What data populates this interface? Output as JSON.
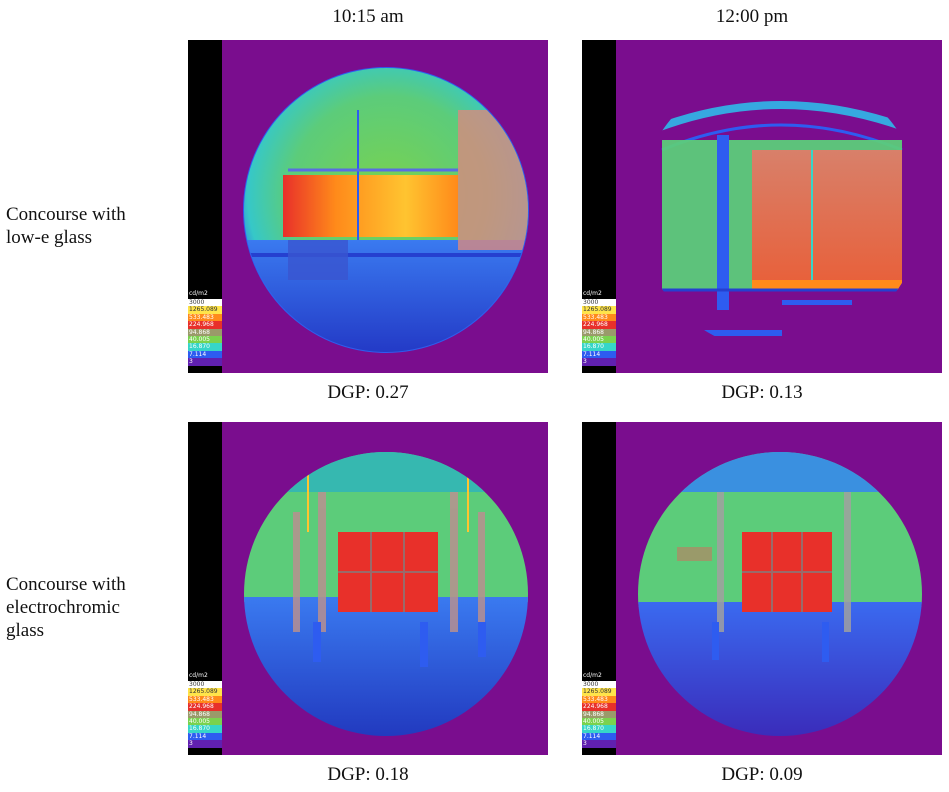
{
  "columns": [
    "10:15 am",
    "12:00 pm"
  ],
  "rows": [
    {
      "label_lines": [
        "Concourse with",
        "low-e glass"
      ]
    },
    {
      "label_lines": [
        "Concourse with",
        "electrochromic",
        "glass"
      ]
    }
  ],
  "legend": {
    "unit": "cd/m2",
    "values": [
      "3000",
      "1265.089",
      "533.483",
      "224.968",
      "94.868",
      "40.005",
      "16.870",
      "7.114",
      "3"
    ],
    "colors": [
      "#ffffff",
      "#ffe44a",
      "#ff8a1a",
      "#e8302a",
      "#9a9a6a",
      "#7ad24e",
      "#36d6c8",
      "#2e5cf0",
      "#6020b0"
    ]
  },
  "panels": [
    {
      "id": "lowe-1015",
      "dgp": "DGP: 0.27"
    },
    {
      "id": "lowe-1200",
      "dgp": "DGP: 0.13"
    },
    {
      "id": "ec-1015",
      "dgp": "DGP: 0.18"
    },
    {
      "id": "ec-1200",
      "dgp": "DGP: 0.09"
    }
  ],
  "colors": {
    "background": "#7a0d8e",
    "scale_bar": "#000000"
  }
}
